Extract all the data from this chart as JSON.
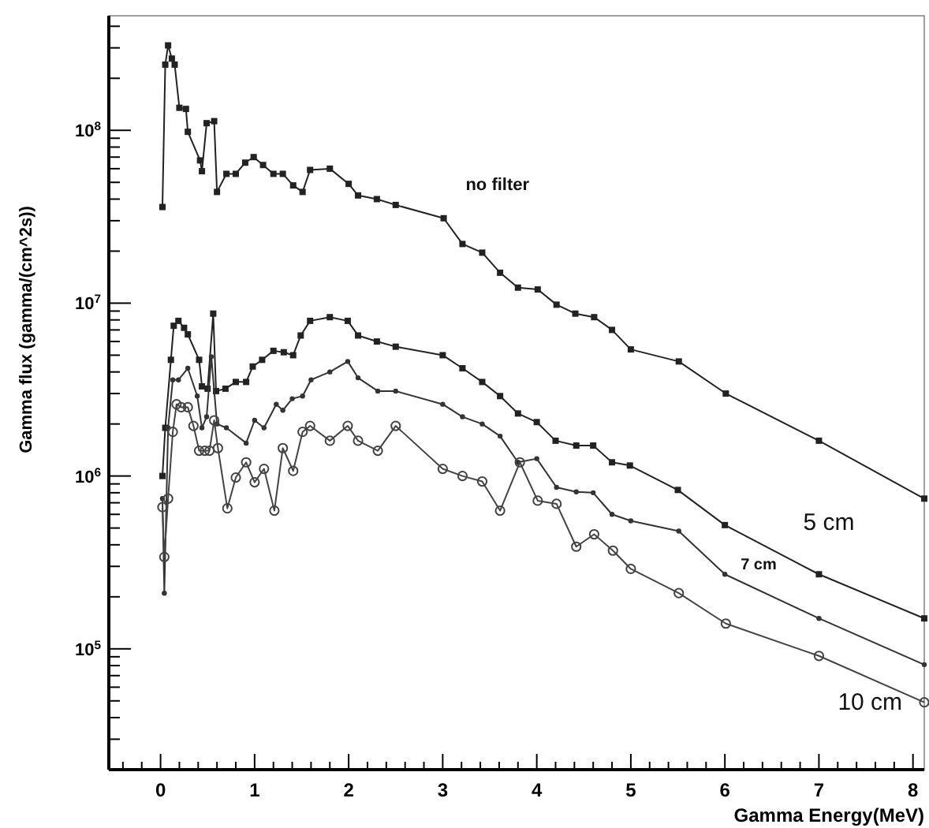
{
  "chart_data": {
    "type": "line",
    "xlabel": "Gamma Energy(MeV)",
    "ylabel": "Gamma flux (gamma/(cm^2s))",
    "log": "y",
    "grid": false,
    "line_style": "solid",
    "xlim": [
      -0.55,
      8.12
    ],
    "ylim": [
      20000,
      460000000
    ],
    "xticks": [
      0,
      1,
      2,
      3,
      4,
      5,
      6,
      7,
      8,
      {
        "value": -0.4,
        "label": null
      },
      {
        "value": -0.2,
        "label": null
      },
      {
        "value": 0.2,
        "label": null
      },
      {
        "value": 0.4,
        "label": null
      },
      {
        "value": 0.6,
        "label": null
      },
      {
        "value": 0.8,
        "label": null
      },
      {
        "value": 1.2,
        "label": null
      },
      {
        "value": 1.4,
        "label": null
      },
      {
        "value": 1.6,
        "label": null
      },
      {
        "value": 1.8,
        "label": null
      },
      {
        "value": 2.2,
        "label": null
      },
      {
        "value": 2.4,
        "label": null
      },
      {
        "value": 2.6,
        "label": null
      },
      {
        "value": 2.8,
        "label": null
      },
      {
        "value": 3.2,
        "label": null
      },
      {
        "value": 3.4,
        "label": null
      },
      {
        "value": 3.6,
        "label": null
      },
      {
        "value": 3.8,
        "label": null
      },
      {
        "value": 4.2,
        "label": null
      },
      {
        "value": 4.4,
        "label": null
      },
      {
        "value": 4.6,
        "label": null
      },
      {
        "value": 4.8,
        "label": null
      },
      {
        "value": 5.2,
        "label": null
      },
      {
        "value": 5.4,
        "label": null
      },
      {
        "value": 5.6,
        "label": null
      },
      {
        "value": 5.8,
        "label": null
      },
      {
        "value": 6.2,
        "label": null
      },
      {
        "value": 6.4,
        "label": null
      },
      {
        "value": 6.6,
        "label": null
      },
      {
        "value": 6.8,
        "label": null
      },
      {
        "value": 7.2,
        "label": null
      },
      {
        "value": 7.4,
        "label": null
      },
      {
        "value": 7.6,
        "label": null
      },
      {
        "value": 7.8,
        "label": null
      }
    ],
    "yticks": [
      {
        "value": 100000,
        "label": "10$^{5}$"
      },
      {
        "value": 1000000,
        "label": "10$^{6}$"
      },
      {
        "value": 10000000,
        "label": "10$^{7}$"
      },
      {
        "value": 100000000,
        "label": "10$^{8}$"
      },
      {
        "value": 30000,
        "label": null
      },
      {
        "value": 40000,
        "label": null
      },
      {
        "value": 50000,
        "label": null
      },
      {
        "value": 60000,
        "label": null
      },
      {
        "value": 70000,
        "label": null
      },
      {
        "value": 80000,
        "label": null
      },
      {
        "value": 90000,
        "label": null
      },
      {
        "value": 200000,
        "label": null
      },
      {
        "value": 300000,
        "label": null
      },
      {
        "value": 400000,
        "label": null
      },
      {
        "value": 500000,
        "label": null
      },
      {
        "value": 600000,
        "label": null
      },
      {
        "value": 700000,
        "label": null
      },
      {
        "value": 800000,
        "label": null
      },
      {
        "value": 900000,
        "label": null
      },
      {
        "value": 2000000,
        "label": null
      },
      {
        "value": 3000000,
        "label": null
      },
      {
        "value": 4000000,
        "label": null
      },
      {
        "value": 5000000,
        "label": null
      },
      {
        "value": 6000000,
        "label": null
      },
      {
        "value": 7000000,
        "label": null
      },
      {
        "value": 8000000,
        "label": null
      },
      {
        "value": 9000000,
        "label": null
      },
      {
        "value": 20000000,
        "label": null
      },
      {
        "value": 30000000,
        "label": null
      },
      {
        "value": 40000000,
        "label": null
      },
      {
        "value": 50000000,
        "label": null
      },
      {
        "value": 60000000,
        "label": null
      },
      {
        "value": 70000000,
        "label": null
      },
      {
        "value": 80000000,
        "label": null
      },
      {
        "value": 90000000,
        "label": null
      },
      {
        "value": 200000000,
        "label": null
      },
      {
        "value": 300000000,
        "label": null
      },
      {
        "value": 400000000,
        "label": null
      }
    ],
    "series": [
      {
        "name": "no filter",
        "color": "#222222",
        "marker": "square",
        "x": [
          0.02,
          0.05,
          0.08,
          0.12,
          0.15,
          0.2,
          0.27,
          0.29,
          0.42,
          0.44,
          0.49,
          0.57,
          0.6,
          0.7,
          0.8,
          0.9,
          0.99,
          1.09,
          1.2,
          1.3,
          1.41,
          1.51,
          1.59,
          1.8,
          2.0,
          2.1,
          2.3,
          2.5,
          3.01,
          3.21,
          3.42,
          3.61,
          3.8,
          4.01,
          4.21,
          4.41,
          4.61,
          4.8,
          5.0,
          5.51,
          6.01,
          7.0,
          8.12
        ],
        "values": [
          36000000,
          240000000,
          310000000,
          260000000,
          240000000,
          135000000,
          133000000,
          98000000,
          67000000,
          58000000,
          110000000,
          113000000,
          44000000,
          56000000,
          56000000,
          65000000,
          70000000,
          63000000,
          56000000,
          56000000,
          48000000,
          44000000,
          59000000,
          60000000,
          49000000,
          42000000,
          40000000,
          37000000,
          31000000,
          22000000,
          19600000,
          15000000,
          12300000,
          12000000,
          9800000,
          8700000,
          8300000,
          7000000,
          5400000,
          4600000,
          3000000,
          1600000,
          740000
        ]
      },
      {
        "name": "5 cm",
        "color": "#222222",
        "marker": "square",
        "x": [
          0.02,
          0.05,
          0.11,
          0.14,
          0.19,
          0.25,
          0.29,
          0.41,
          0.44,
          0.5,
          0.56,
          0.59,
          0.69,
          0.8,
          0.91,
          0.98,
          1.08,
          1.2,
          1.31,
          1.41,
          1.49,
          1.59,
          1.8,
          1.99,
          2.1,
          2.3,
          2.5,
          3.0,
          3.21,
          3.42,
          3.61,
          3.8,
          4.0,
          4.2,
          4.42,
          4.6,
          4.8,
          4.99,
          5.5,
          6.0,
          7.0,
          8.12
        ],
        "values": [
          1000000,
          1900000,
          4700000,
          7400000,
          7900000,
          7200000,
          6600000,
          4700000,
          3300000,
          3200000,
          8700000,
          3100000,
          3200000,
          3500000,
          3500000,
          4300000,
          4700000,
          5300000,
          5200000,
          5000000,
          6500000,
          7900000,
          8300000,
          7900000,
          6500000,
          6000000,
          5600000,
          5000000,
          4200000,
          3500000,
          2900000,
          2300000,
          2050000,
          1600000,
          1500000,
          1500000,
          1200000,
          1150000,
          830000,
          520000,
          270000,
          150000
        ]
      },
      {
        "name": "7 cm",
        "color": "#333333",
        "marker": "circle",
        "x": [
          0.02,
          0.04,
          0.08,
          0.13,
          0.19,
          0.29,
          0.39,
          0.44,
          0.49,
          0.54,
          0.6,
          0.7,
          0.91,
          1.0,
          1.1,
          1.23,
          1.3,
          1.4,
          1.51,
          1.6,
          1.8,
          1.99,
          2.1,
          2.31,
          2.5,
          3.0,
          3.21,
          3.42,
          3.61,
          3.8,
          4.0,
          4.21,
          4.42,
          4.6,
          4.8,
          5.0,
          5.51,
          6.0,
          7.0,
          8.12
        ],
        "values": [
          740000,
          210000,
          1900000,
          3600000,
          3600000,
          4200000,
          2900000,
          1900000,
          2200000,
          4900000,
          2000000,
          1900000,
          1550000,
          2100000,
          1900000,
          2600000,
          2400000,
          2800000,
          2900000,
          3600000,
          4000000,
          4600000,
          3700000,
          3100000,
          3100000,
          2600000,
          2200000,
          2000000,
          1700000,
          1200000,
          1260000,
          860000,
          810000,
          800000,
          600000,
          550000,
          480000,
          270000,
          150000,
          81000
        ]
      },
      {
        "name": "10 cm",
        "color": "#444444",
        "marker": "open-circle",
        "x": [
          0.02,
          0.04,
          0.08,
          0.13,
          0.17,
          0.22,
          0.29,
          0.35,
          0.41,
          0.47,
          0.52,
          0.57,
          0.61,
          0.71,
          0.8,
          0.91,
          1.0,
          1.1,
          1.21,
          1.3,
          1.41,
          1.51,
          1.59,
          1.8,
          1.99,
          2.1,
          2.31,
          2.5,
          3.0,
          3.21,
          3.42,
          3.61,
          3.82,
          4.01,
          4.21,
          4.42,
          4.61,
          4.81,
          5.0,
          5.51,
          6.01,
          7.0,
          8.12
        ],
        "values": [
          660000,
          340000,
          740000,
          1800000,
          2600000,
          2500000,
          2500000,
          1950000,
          1400000,
          1400000,
          1400000,
          2100000,
          1450000,
          650000,
          980000,
          1200000,
          920000,
          1100000,
          630000,
          1450000,
          1070000,
          1800000,
          1950000,
          1600000,
          1950000,
          1600000,
          1400000,
          1950000,
          1100000,
          1000000,
          930000,
          630000,
          1200000,
          720000,
          690000,
          390000,
          460000,
          370000,
          290000,
          210000,
          140000,
          91000,
          49000
        ]
      }
    ]
  }
}
